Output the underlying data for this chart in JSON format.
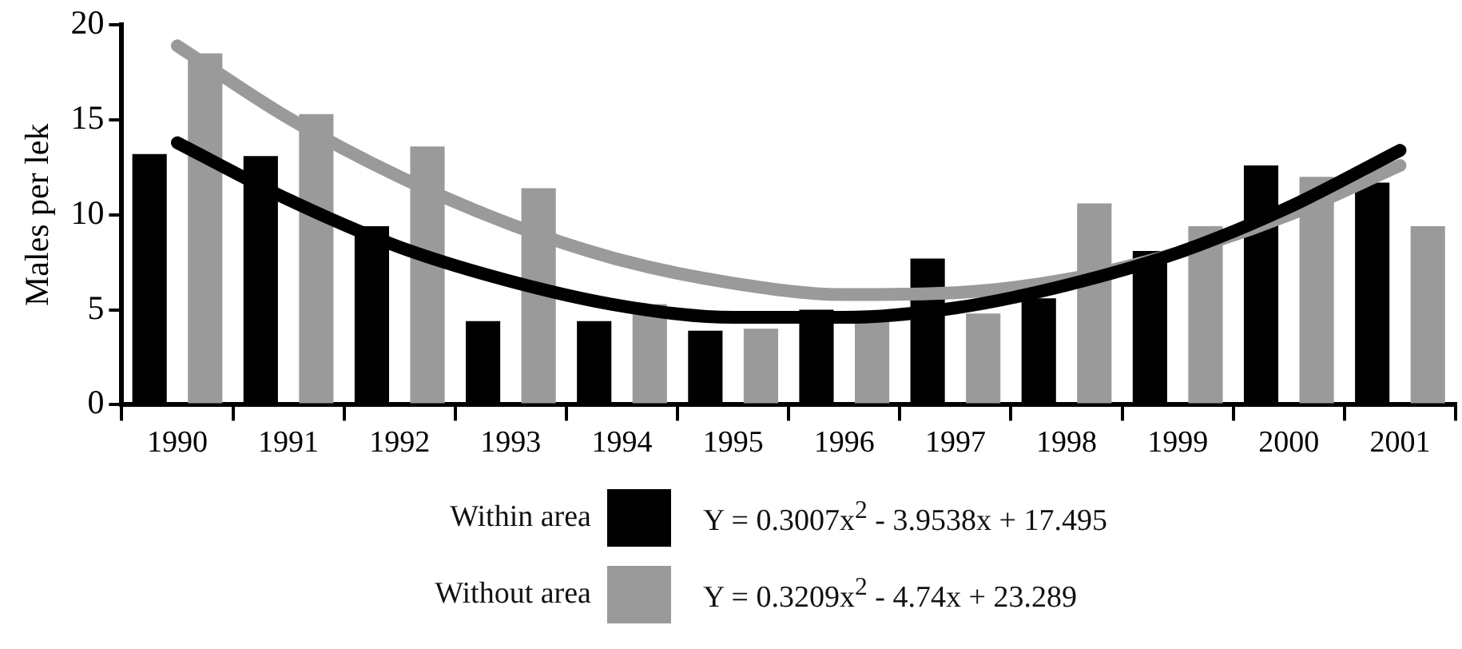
{
  "chart_data": {
    "type": "bar",
    "ylabel": "Males per lek",
    "categories": [
      "1990",
      "1991",
      "1992",
      "1993",
      "1994",
      "1995",
      "1996",
      "1997",
      "1998",
      "1999",
      "2000",
      "2001"
    ],
    "series": [
      {
        "name": "Within area",
        "color": "#000000",
        "values": [
          13.2,
          13.1,
          9.4,
          4.4,
          4.4,
          3.9,
          5.0,
          7.7,
          5.6,
          8.1,
          12.6,
          11.7
        ]
      },
      {
        "name": "Without area",
        "color": "#9a9a9a",
        "values": [
          18.5,
          15.3,
          13.6,
          11.4,
          5.3,
          4.0,
          4.4,
          4.8,
          10.6,
          9.4,
          12.0,
          9.4
        ]
      },
      {
        "type": "line",
        "color": "#000000",
        "values": [
          13.8,
          10.8,
          8.3,
          6.5,
          5.2,
          4.6,
          4.6,
          5.1,
          6.3,
          8.0,
          10.4,
          13.4
        ]
      },
      {
        "type": "line",
        "color": "#9a9a9a",
        "values": [
          18.9,
          15.1,
          12.0,
          9.5,
          7.6,
          6.4,
          5.8,
          5.9,
          6.6,
          8.0,
          10.0,
          12.6
        ]
      }
    ],
    "ylim": [
      0,
      20
    ],
    "yticks": [
      0,
      5,
      10,
      15,
      20
    ],
    "grid": false,
    "legend": "bottom",
    "marker": "none",
    "annotations": [
      "Y = 0.3007x$^{2}$ - 3.9538x + 17.495",
      "Y = 0.3209x$^{2}$ - 4.74x + 23.289"
    ]
  }
}
